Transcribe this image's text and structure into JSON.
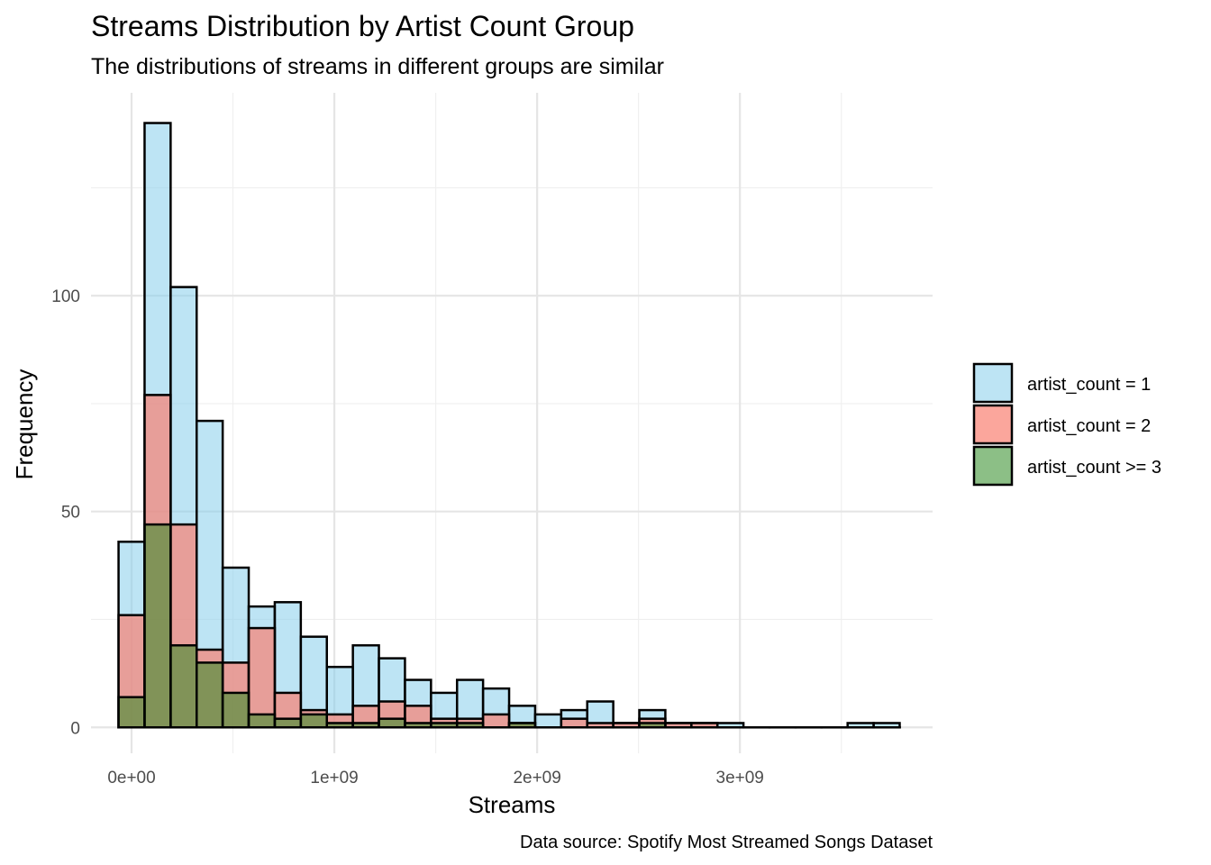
{
  "chart_data": {
    "type": "bar",
    "title": "Streams Distribution by Artist Count Group",
    "subtitle": "The distributions of streams in different groups are similar",
    "xlabel": "Streams",
    "ylabel": "Frequency",
    "caption": "Data source: Spotify Most Streamed Songs Dataset",
    "xlim": [
      -200000000,
      3950000000
    ],
    "ylim": [
      -6,
      147
    ],
    "x_ticks": [
      {
        "value": 0,
        "label": "0e+00"
      },
      {
        "value": 1000000000,
        "label": "1e+09"
      },
      {
        "value": 2000000000,
        "label": "2e+09"
      },
      {
        "value": 3000000000,
        "label": "3e+09"
      }
    ],
    "y_ticks": [
      {
        "value": 0,
        "label": "0"
      },
      {
        "value": 50,
        "label": "50"
      },
      {
        "value": 100,
        "label": "100"
      }
    ],
    "grid": true,
    "legend_position": "right",
    "bin_width": 128400000,
    "bin_centers": [
      0,
      128400000,
      256800000,
      385200000,
      513600000,
      642000000,
      770400000,
      898800000,
      1027200000,
      1155600000,
      1284000000,
      1412400000,
      1540800000,
      1669200000,
      1797600000,
      1926000000,
      2054400000,
      2182800000,
      2311200000,
      2439600000,
      2568000000,
      2696400000,
      2824800000,
      2953200000,
      3081600000,
      3210000000,
      3338400000,
      3466800000,
      3595200000,
      3723600000
    ],
    "series": [
      {
        "name": "artist_count = 1",
        "color": "#87CEEB",
        "values": [
          43,
          140,
          102,
          71,
          37,
          28,
          29,
          21,
          14,
          19,
          16,
          11,
          8,
          11,
          9,
          5,
          3,
          4,
          6,
          1,
          4,
          1,
          1,
          1,
          0,
          0,
          0,
          0,
          1,
          1
        ]
      },
      {
        "name": "artist_count = 2",
        "color": "#FA8072",
        "values": [
          26,
          77,
          47,
          18,
          15,
          23,
          8,
          4,
          3,
          5,
          6,
          5,
          2,
          2,
          3,
          1,
          0,
          2,
          1,
          1,
          2,
          1,
          1,
          0,
          0,
          0,
          0,
          0,
          0,
          0
        ]
      },
      {
        "name": "artist_count >= 3",
        "color": "#2E8B22",
        "values": [
          7,
          47,
          19,
          15,
          8,
          3,
          2,
          3,
          1,
          1,
          2,
          1,
          1,
          1,
          0,
          1,
          0,
          0,
          0,
          0,
          1,
          0,
          0,
          0,
          0,
          0,
          0,
          0,
          0,
          0
        ]
      }
    ],
    "fill_alpha": [
      0.55,
      0.7,
      0.55
    ]
  }
}
